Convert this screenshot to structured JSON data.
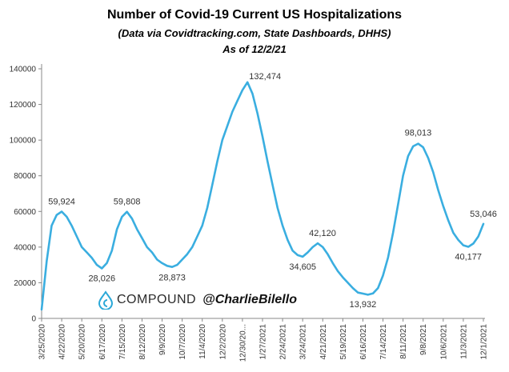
{
  "header": {
    "title": "Number of Covid-19 Current US Hospitalizations",
    "subtitle": "(Data via Covidtracking.com, State Dashboards, DHHS)",
    "as_of": "As of 12/2/21"
  },
  "branding": {
    "logo_text": "COMPOUND",
    "handle": "@CharlieBilello",
    "icon": "compound-drop-logo-icon",
    "color": "#2aa8d8"
  },
  "chart_data": {
    "type": "line",
    "title": "Number of Covid-19 Current US Hospitalizations",
    "xlabel": "",
    "ylabel": "",
    "ylim": [
      0,
      140000
    ],
    "yticks": [
      "0",
      "20000",
      "40000",
      "60000",
      "80000",
      "100000",
      "120000",
      "140000"
    ],
    "xticks": [
      "3/25/2020",
      "4/22/2020",
      "5/20/2020",
      "6/17/2020",
      "7/15/2020",
      "8/12/2020",
      "9/9/2020",
      "10/7/2020",
      "11/4/2020",
      "12/2/2020",
      "12/30/20...",
      "1/27/2021",
      "2/24/2021",
      "3/24/2021",
      "4/21/2021",
      "5/19/2021",
      "6/16/2021",
      "7/14/2021",
      "8/11/2021",
      "9/8/2021",
      "10/6/2021",
      "11/3/2021",
      "12/1/2021"
    ],
    "grid": false,
    "line_color": "#3aaee0",
    "series": [
      {
        "x": [
          "3/25/2020",
          "4/1/2020",
          "4/8/2020",
          "4/15/2020",
          "4/22/2020",
          "4/29/2020",
          "5/6/2020",
          "5/13/2020",
          "5/20/2020",
          "5/27/2020",
          "6/3/2020",
          "6/10/2020",
          "6/17/2020",
          "6/24/2020",
          "7/1/2020",
          "7/8/2020",
          "7/15/2020",
          "7/22/2020",
          "7/29/2020",
          "8/5/2020",
          "8/12/2020",
          "8/19/2020",
          "8/26/2020",
          "9/2/2020",
          "9/9/2020",
          "9/16/2020",
          "9/23/2020",
          "9/30/2020",
          "10/7/2020",
          "10/14/2020",
          "10/21/2020",
          "10/28/2020",
          "11/4/2020",
          "11/11/2020",
          "11/18/2020",
          "11/25/2020",
          "12/2/2020",
          "12/9/2020",
          "12/16/2020",
          "12/23/2020",
          "12/30/2020",
          "1/6/2021",
          "1/13/2021",
          "1/20/2021",
          "1/27/2021",
          "2/3/2021",
          "2/10/2021",
          "2/17/2021",
          "2/24/2021",
          "3/3/2021",
          "3/10/2021",
          "3/17/2021",
          "3/24/2021",
          "3/31/2021",
          "4/7/2021",
          "4/14/2021",
          "4/21/2021",
          "4/28/2021",
          "5/5/2021",
          "5/12/2021",
          "5/19/2021",
          "5/26/2021",
          "6/2/2021",
          "6/9/2021",
          "6/16/2021",
          "6/23/2021",
          "6/30/2021",
          "7/7/2021",
          "7/14/2021",
          "7/21/2021",
          "7/28/2021",
          "8/4/2021",
          "8/11/2021",
          "8/18/2021",
          "8/25/2021",
          "9/1/2021",
          "9/8/2021",
          "9/15/2021",
          "9/22/2021",
          "9/29/2021",
          "10/6/2021",
          "10/13/2021",
          "10/20/2021",
          "10/27/2021",
          "11/3/2021",
          "11/10/2021",
          "11/17/2021",
          "11/24/2021",
          "12/1/2021"
        ],
        "values": [
          5000,
          32000,
          52000,
          58000,
          59924,
          57000,
          52000,
          46000,
          40000,
          37000,
          34000,
          30000,
          28026,
          31000,
          38000,
          50000,
          57000,
          59808,
          56000,
          50000,
          45000,
          40000,
          37000,
          33000,
          31000,
          29500,
          28873,
          30000,
          33000,
          36000,
          40000,
          46000,
          52000,
          62000,
          75000,
          88000,
          100000,
          108000,
          116000,
          122000,
          128000,
          132474,
          126000,
          115000,
          102000,
          88000,
          75000,
          62000,
          52000,
          44000,
          38000,
          35500,
          34605,
          37000,
          40000,
          42120,
          40000,
          36000,
          31000,
          26500,
          23000,
          20000,
          17000,
          14500,
          13932,
          13300,
          14000,
          17000,
          24000,
          34000,
          48000,
          64000,
          80000,
          91000,
          96500,
          98013,
          96000,
          90000,
          82000,
          72000,
          63000,
          55000,
          48000,
          44000,
          41000,
          40177,
          42000,
          46000,
          53046
        ]
      }
    ],
    "annotations": [
      {
        "x": "4/22/2020",
        "y": 59924,
        "label": "59,924"
      },
      {
        "x": "6/17/2020",
        "y": 28026,
        "label": "28,026"
      },
      {
        "x": "7/22/2020",
        "y": 59808,
        "label": "59,808"
      },
      {
        "x": "9/23/2020",
        "y": 28873,
        "label": "28,873"
      },
      {
        "x": "1/6/2021",
        "y": 132474,
        "label": "132,474"
      },
      {
        "x": "3/24/2021",
        "y": 34605,
        "label": "34,605"
      },
      {
        "x": "4/14/2021",
        "y": 42120,
        "label": "42,120"
      },
      {
        "x": "6/16/2021",
        "y": 13932,
        "label": "13,932"
      },
      {
        "x": "9/1/2021",
        "y": 98013,
        "label": "98,013"
      },
      {
        "x": "11/10/2021",
        "y": 40177,
        "label": "40,177"
      },
      {
        "x": "12/1/2021",
        "y": 53046,
        "label": "53,046"
      }
    ]
  }
}
